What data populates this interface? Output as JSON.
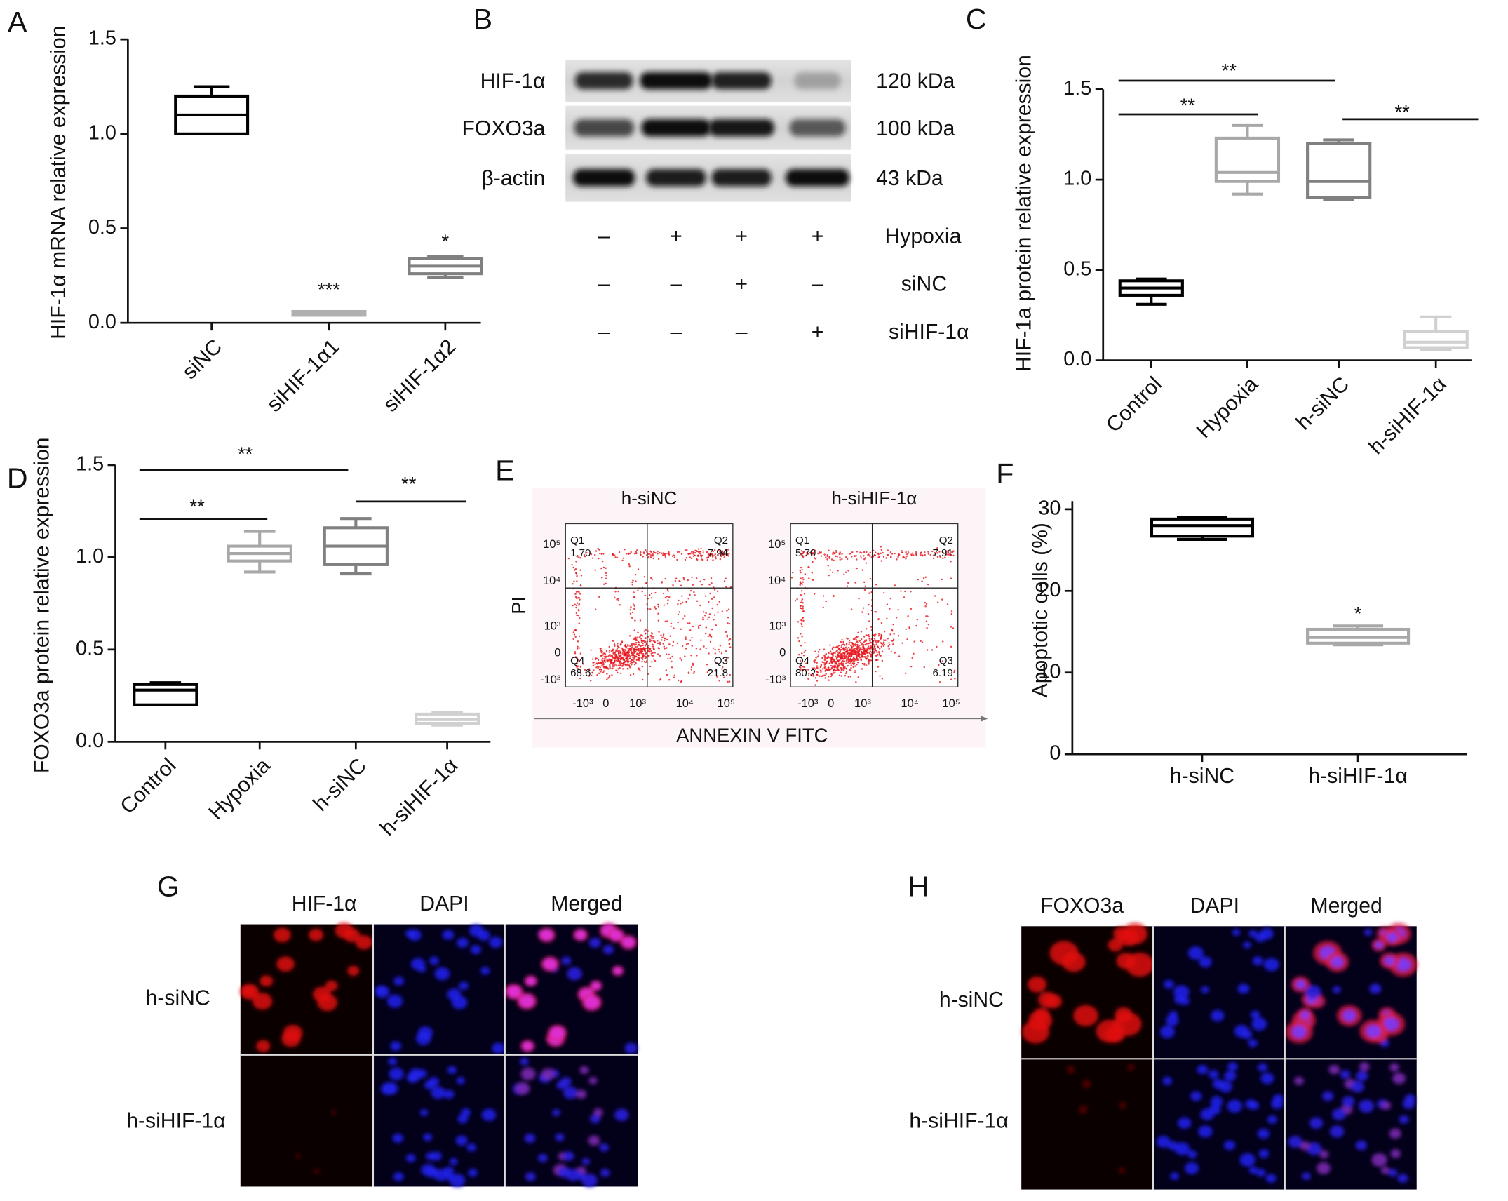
{
  "chart_data": [
    {
      "type": "box",
      "panel": "A",
      "y_label": "HIF-1α mRNA relative expression",
      "categories": [
        "siNC",
        "siHIF-1α1",
        "siHIF-1α2"
      ],
      "boxes": [
        {
          "min": 1.0,
          "q1": 1.0,
          "median": 1.1,
          "q3": 1.2,
          "max": 1.25
        },
        {
          "min": 0.04,
          "q1": 0.04,
          "median": 0.05,
          "q3": 0.06,
          "max": 0.06
        },
        {
          "min": 0.24,
          "q1": 0.26,
          "median": 0.3,
          "q3": 0.34,
          "max": 0.35
        }
      ],
      "colors": [
        "#000000",
        "#b0b0b0",
        "#808080"
      ],
      "annotations": [
        "***",
        "*"
      ],
      "ylim": [
        0,
        1.5
      ],
      "yticks": [
        {
          "value": 0,
          "label": "0.0"
        },
        0.5,
        {
          "value": 1,
          "label": "1.0"
        },
        1.5
      ]
    },
    {
      "type": "box",
      "panel": "C",
      "y_label": "HIF-1a protein relative expression",
      "categories": [
        "Control",
        "Hypoxia",
        "h-siNC",
        "h-siHIF-1α"
      ],
      "boxes": [
        {
          "min": 0.31,
          "q1": 0.36,
          "median": 0.4,
          "q3": 0.44,
          "max": 0.45
        },
        {
          "min": 0.92,
          "q1": 0.99,
          "median": 1.04,
          "q3": 1.23,
          "max": 1.3
        },
        {
          "min": 0.89,
          "q1": 0.9,
          "median": 0.99,
          "q3": 1.2,
          "max": 1.22
        },
        {
          "min": 0.06,
          "q1": 0.07,
          "median": 0.1,
          "q3": 0.16,
          "max": 0.24
        }
      ],
      "colors": [
        "#000000",
        "#a8a8a8",
        "#808080",
        "#d0d0d0"
      ],
      "annotations": [
        "**",
        "**",
        "**"
      ],
      "ylim": [
        0,
        1.5
      ],
      "yticks": [
        {
          "value": 0,
          "label": "0.0"
        },
        0.5,
        {
          "value": 1,
          "label": "1.0"
        },
        1.5
      ]
    },
    {
      "type": "box",
      "panel": "D",
      "y_label": "FOXO3a protein relative expression",
      "categories": [
        "Control",
        "Hypoxia",
        "h-siNC",
        "h-siHIF-1α"
      ],
      "boxes": [
        {
          "min": 0.2,
          "q1": 0.2,
          "median": 0.28,
          "q3": 0.31,
          "max": 0.32
        },
        {
          "min": 0.92,
          "q1": 0.98,
          "median": 1.02,
          "q3": 1.06,
          "max": 1.14
        },
        {
          "min": 0.91,
          "q1": 0.96,
          "median": 1.06,
          "q3": 1.16,
          "max": 1.21
        },
        {
          "min": 0.09,
          "q1": 0.1,
          "median": 0.12,
          "q3": 0.15,
          "max": 0.16
        }
      ],
      "colors": [
        "#000000",
        "#a8a8a8",
        "#808080",
        "#d0d0d0"
      ],
      "annotations": [
        "**",
        "**",
        "**"
      ],
      "ylim": [
        0,
        1.5
      ],
      "yticks": [
        {
          "value": 0,
          "label": "0.0"
        },
        0.5,
        {
          "value": 1,
          "label": "1.0"
        },
        1.5
      ]
    },
    {
      "type": "box",
      "panel": "F",
      "y_label": "Apoptotic  cells (%)",
      "categories": [
        "h-siNC",
        "h-siHIF-1α"
      ],
      "boxes": [
        {
          "min": 26.3,
          "q1": 26.7,
          "median": 28,
          "q3": 28.8,
          "max": 29
        },
        {
          "min": 13.4,
          "q1": 13.6,
          "median": 14.3,
          "q3": 15.3,
          "max": 15.7
        }
      ],
      "colors": [
        "#000000",
        "#a8a8a8"
      ],
      "annotations": [
        "*"
      ],
      "ylim": [
        0,
        31
      ],
      "yticks": [
        0,
        10,
        20,
        30
      ]
    }
  ],
  "western_blot": {
    "panel": "B",
    "proteins": [
      {
        "name": "HIF-1α",
        "size": "120 kDa"
      },
      {
        "name": "FOXO3a",
        "size": "100 kDa"
      },
      {
        "name": "β-actin",
        "size": "43 kDa"
      }
    ],
    "conditions": [
      {
        "name": "Hypoxia",
        "signs": [
          "–",
          "+",
          "+",
          "+"
        ]
      },
      {
        "name": "siNC",
        "signs": [
          "–",
          "–",
          "+",
          "–"
        ]
      },
      {
        "name": "siHIF-1α",
        "signs": [
          "–",
          "–",
          "–",
          "+"
        ]
      }
    ]
  },
  "flow_cytometry": {
    "panel": "E",
    "y_label": "PI",
    "x_label": "ANNEXIN V FITC",
    "yticks": [
      "10⁵",
      "10⁴",
      "10³",
      "0",
      "-10³"
    ],
    "xticks": [
      "-10³",
      "0",
      "10³",
      "10⁴",
      "10⁵"
    ],
    "plots": [
      {
        "title": "h-siNC",
        "quadrants": [
          {
            "name": "Q1",
            "value": "1.70"
          },
          {
            "name": "Q2",
            "value": "7.94"
          },
          {
            "name": "Q3",
            "value": "21.8"
          },
          {
            "name": "Q4",
            "value": "68.6"
          }
        ]
      },
      {
        "title": "h-siHIF-1α",
        "quadrants": [
          {
            "name": "Q1",
            "value": "5.70"
          },
          {
            "name": "Q2",
            "value": "7.91"
          },
          {
            "name": "Q3",
            "value": "6.19"
          },
          {
            "name": "Q4",
            "value": "80.2"
          }
        ]
      }
    ]
  },
  "immunofluorescence": [
    {
      "panel": "G",
      "columns": [
        "HIF-1α",
        "DAPI",
        "Merged"
      ],
      "rows": [
        "h-siNC",
        "h-siHIF-1α"
      ]
    },
    {
      "panel": "H",
      "columns": [
        "FOXO3a",
        "DAPI",
        "Merged"
      ],
      "rows": [
        "h-siNC",
        "h-siHIF-1α"
      ]
    }
  ]
}
